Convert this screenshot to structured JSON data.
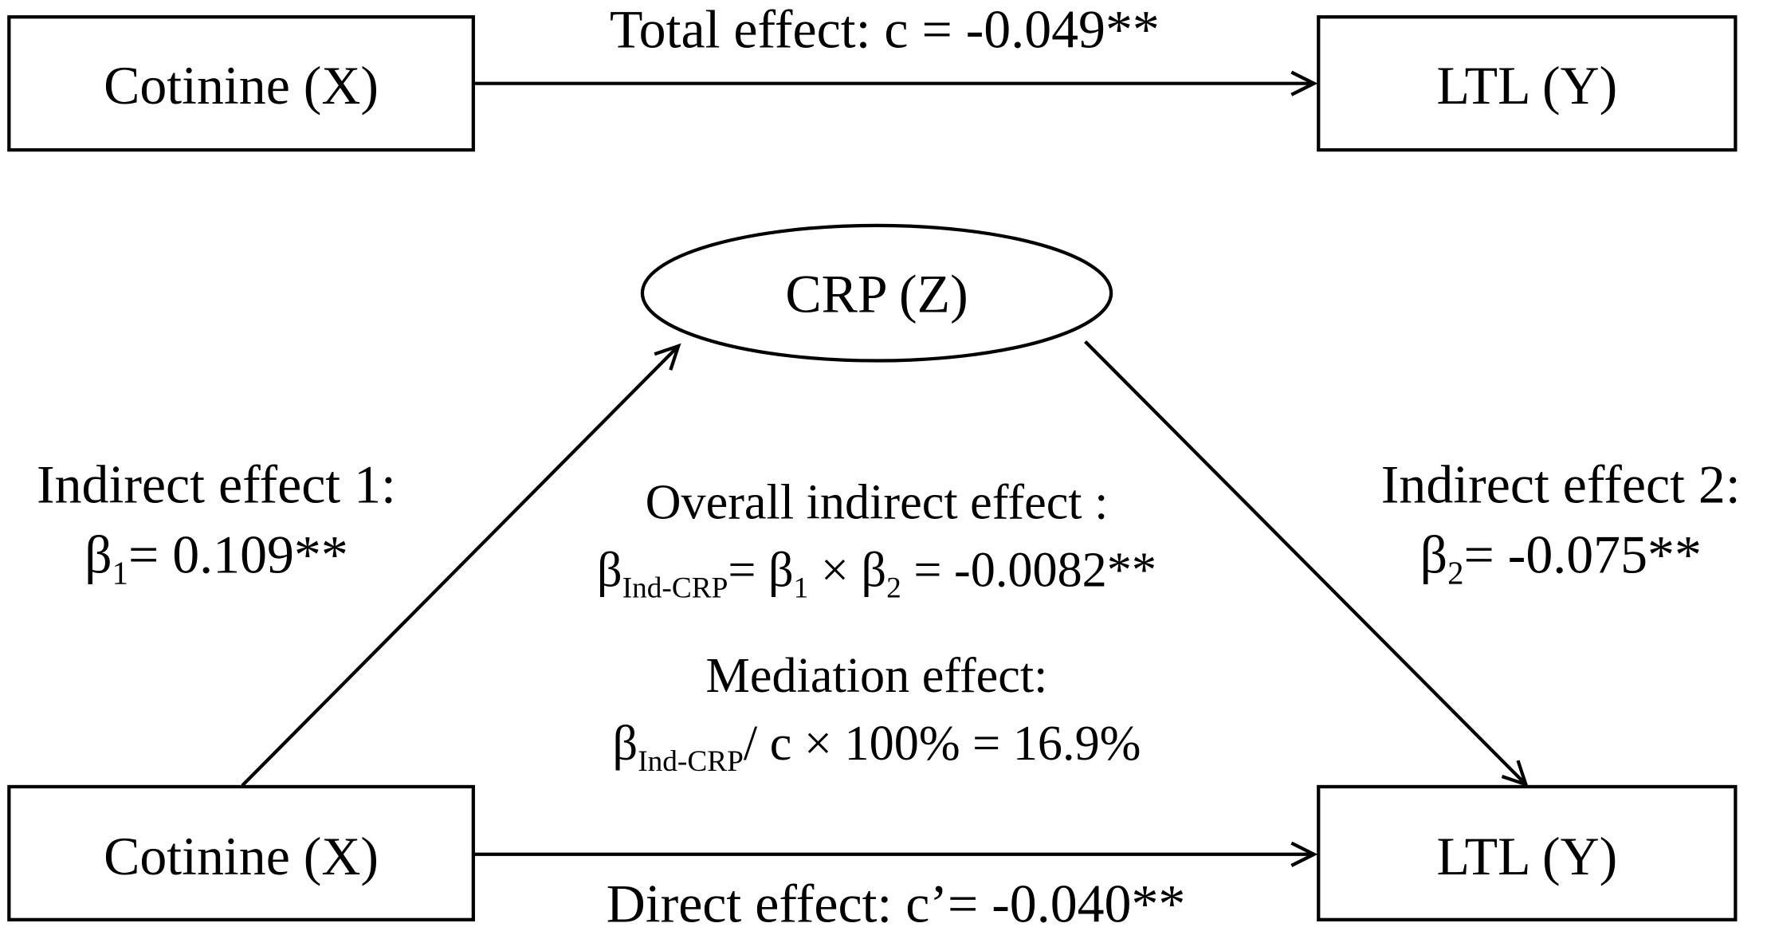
{
  "top": {
    "x_node": "Cotinine (X)",
    "y_node": "LTL (Y)",
    "total_effect": "Total effect:  c = -0.049**"
  },
  "bottom": {
    "x_node": "Cotinine (X)",
    "y_node": "LTL (Y)",
    "mediator": "CRP (Z)",
    "direct_effect": "Direct effect:  c’= -0.040**",
    "indirect_1": {
      "label": "Indirect effect 1:",
      "formula": [
        "β",
        "1",
        "= 0.109**"
      ]
    },
    "indirect_2": {
      "label": "Indirect effect 2:",
      "formula": [
        "β",
        "2",
        "= -0.075**"
      ]
    },
    "overall": {
      "label": "Overall indirect effect :",
      "formula": [
        "β",
        "Ind-CRP",
        "= β",
        "1",
        " × β",
        "2",
        " = -0.0082**"
      ]
    },
    "mediation": {
      "label": "Mediation effect:",
      "formula": [
        "β",
        "Ind-CRP",
        "/ c × 100% = 16.9%"
      ]
    }
  }
}
